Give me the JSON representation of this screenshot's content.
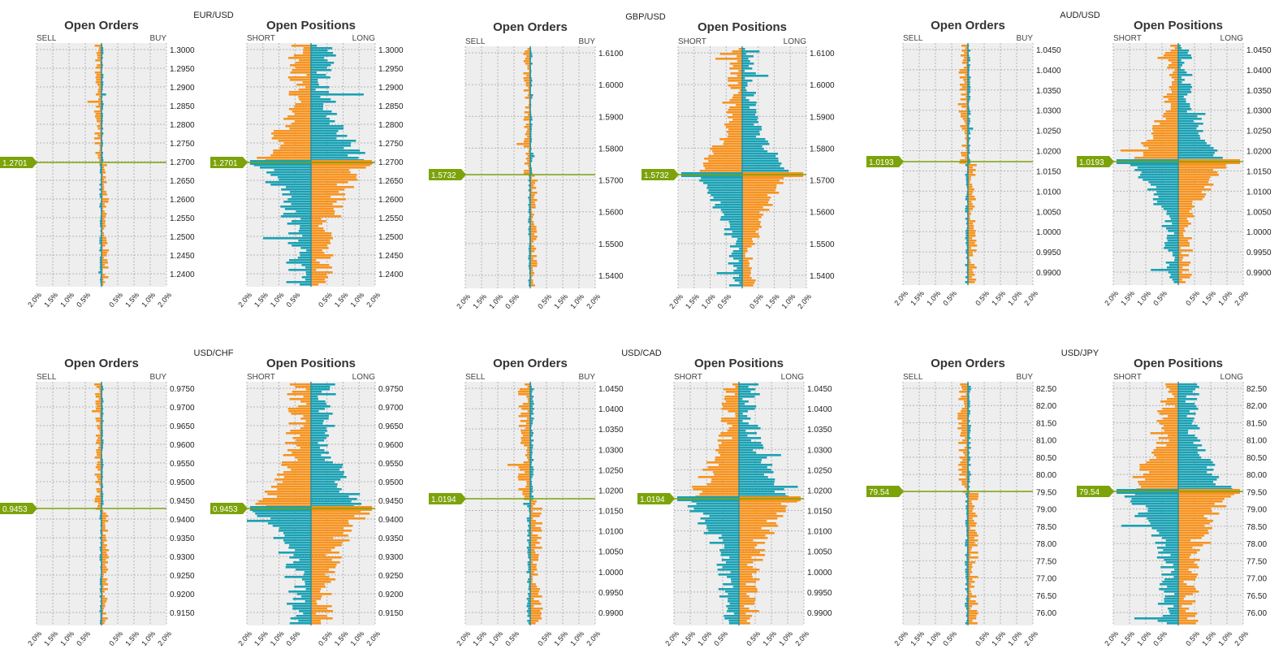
{
  "colors": {
    "buy": "#f7931e",
    "sell": "#1aa1b4",
    "price": "#7ca30a",
    "plot_bg": "#eeeeee",
    "grid": "#b4b4b4"
  },
  "chart_data": [
    {
      "pair": "EUR/USD",
      "title": "Open Orders",
      "type": "bar",
      "left_label": "SELL",
      "right_label": "BUY",
      "current_price": "1.2701",
      "y_ticks": [
        "1.3000",
        "1.2950",
        "1.2900",
        "1.2850",
        "1.2800",
        "1.2750",
        "1.2700",
        "1.2650",
        "1.2600",
        "1.2550",
        "1.2500",
        "1.2450",
        "1.2400"
      ],
      "x_ticks": [
        "2.0%",
        "1.5%",
        "1.0%",
        "0.5%",
        "0.5%",
        "1.5%",
        "1.0%",
        "2.0%"
      ],
      "xlim": [
        -2.0,
        2.0
      ],
      "above_bias": "buy",
      "seed": 11,
      "bar_scale": 0.35,
      "spike": 0.9
    },
    {
      "pair": "EUR/USD",
      "title": "Open Positions",
      "type": "bar",
      "left_label": "SHORT",
      "right_label": "LONG",
      "current_price": "1.2701",
      "y_ticks": [
        "1.3000",
        "1.2950",
        "1.2900",
        "1.2850",
        "1.2800",
        "1.2750",
        "1.2700",
        "1.2650",
        "1.2600",
        "1.2550",
        "1.2500",
        "1.2450",
        "1.2400"
      ],
      "x_ticks": [
        "2.0%",
        "1.5%",
        "1.0%",
        "0.5%",
        "0.5%",
        "1.5%",
        "1.0%",
        "2.0%"
      ],
      "xlim": [
        -2.0,
        2.0
      ],
      "above_bias": "short-long",
      "seed": 12,
      "bar_scale": 1.2,
      "spike": 2.0
    },
    {
      "pair": "GBP/USD",
      "title": "Open Orders",
      "type": "bar",
      "left_label": "SELL",
      "right_label": "BUY",
      "current_price": "1.5732",
      "y_ticks": [
        "1.6100",
        "1.6000",
        "1.5900",
        "1.5800",
        "1.5700",
        "1.5600",
        "1.5500",
        "1.5400"
      ],
      "x_ticks": [
        "2.0%",
        "1.5%",
        "1.0%",
        "0.5%",
        "0.5%",
        "1.5%",
        "1.0%",
        "2.0%"
      ],
      "xlim": [
        -2.0,
        2.0
      ],
      "above_bias": "buy",
      "seed": 21,
      "bar_scale": 0.35,
      "spike": 0.8
    },
    {
      "pair": "GBP/USD",
      "title": "Open Positions",
      "type": "bar",
      "left_label": "SHORT",
      "right_label": "LONG",
      "current_price": "1.5732",
      "y_ticks": [
        "1.6100",
        "1.6000",
        "1.5900",
        "1.5800",
        "1.5700",
        "1.5600",
        "1.5500",
        "1.5400"
      ],
      "x_ticks": [
        "2.0%",
        "1.5%",
        "1.0%",
        "0.5%",
        "0.5%",
        "1.5%",
        "1.0%",
        "2.0%"
      ],
      "xlim": [
        -2.0,
        2.0
      ],
      "above_bias": "short-long",
      "seed": 22,
      "bar_scale": 0.7,
      "spike": 2.0
    },
    {
      "pair": "AUD/USD",
      "title": "Open Orders",
      "type": "bar",
      "left_label": "SELL",
      "right_label": "BUY",
      "current_price": "1.0193",
      "y_ticks": [
        "1.0450",
        "1.0400",
        "1.0350",
        "1.0300",
        "1.0250",
        "1.0200",
        "1.0150",
        "1.0100",
        "1.0050",
        "1.0000",
        "0.9950",
        "0.9900"
      ],
      "x_ticks": [
        "2.0%",
        "1.5%",
        "1.0%",
        "0.5%",
        "0.5%",
        "1.5%",
        "1.0%",
        "2.0%"
      ],
      "xlim": [
        -2.0,
        2.0
      ],
      "above_bias": "buy",
      "seed": 31,
      "bar_scale": 0.45,
      "spike": 1.0
    },
    {
      "pair": "AUD/USD",
      "title": "Open Positions",
      "type": "bar",
      "left_label": "SHORT",
      "right_label": "LONG",
      "current_price": "1.0193",
      "y_ticks": [
        "1.0450",
        "1.0400",
        "1.0350",
        "1.0300",
        "1.0250",
        "1.0200",
        "1.0150",
        "1.0100",
        "1.0050",
        "1.0000",
        "0.9950",
        "0.9900"
      ],
      "x_ticks": [
        "2.0%",
        "1.5%",
        "1.0%",
        "0.5%",
        "0.5%",
        "1.5%",
        "1.0%",
        "2.0%"
      ],
      "xlim": [
        -2.0,
        2.0
      ],
      "above_bias": "short-long",
      "seed": 32,
      "bar_scale": 0.7,
      "spike": 2.0
    },
    {
      "pair": "USD/CHF",
      "title": "Open Orders",
      "type": "bar",
      "left_label": "SELL",
      "right_label": "BUY",
      "current_price": "0.9453",
      "y_ticks": [
        "0.9750",
        "0.9700",
        "0.9650",
        "0.9600",
        "0.9550",
        "0.9500",
        "0.9450",
        "0.9400",
        "0.9350",
        "0.9300",
        "0.9250",
        "0.9200",
        "0.9150"
      ],
      "x_ticks": [
        "2.0%",
        "1.5%",
        "1.0%",
        "0.5%",
        "0.5%",
        "1.5%",
        "1.0%",
        "2.0%"
      ],
      "xlim": [
        -2.0,
        2.0
      ],
      "above_bias": "buy",
      "seed": 41,
      "bar_scale": 0.35,
      "spike": 0.7
    },
    {
      "pair": "USD/CHF",
      "title": "Open Positions",
      "type": "bar",
      "left_label": "SHORT",
      "right_label": "LONG",
      "current_price": "0.9453",
      "y_ticks": [
        "0.9750",
        "0.9700",
        "0.9650",
        "0.9600",
        "0.9550",
        "0.9500",
        "0.9450",
        "0.9400",
        "0.9350",
        "0.9300",
        "0.9250",
        "0.9200",
        "0.9150"
      ],
      "x_ticks": [
        "2.0%",
        "1.5%",
        "1.0%",
        "0.5%",
        "0.5%",
        "1.5%",
        "1.0%",
        "2.0%"
      ],
      "xlim": [
        -2.0,
        2.0
      ],
      "above_bias": "long-short",
      "seed": 42,
      "bar_scale": 1.2,
      "spike": 2.0
    },
    {
      "pair": "USD/CAD",
      "title": "Open Orders",
      "type": "bar",
      "left_label": "SELL",
      "right_label": "BUY",
      "current_price": "1.0194",
      "y_ticks": [
        "1.0450",
        "1.0400",
        "1.0350",
        "1.0300",
        "1.0250",
        "1.0200",
        "1.0150",
        "1.0100",
        "1.0050",
        "1.0000",
        "0.9950",
        "0.9900"
      ],
      "x_ticks": [
        "2.0%",
        "1.5%",
        "1.0%",
        "0.5%",
        "0.5%",
        "1.5%",
        "1.0%",
        "2.0%"
      ],
      "xlim": [
        -2.0,
        2.0
      ],
      "above_bias": "buy",
      "seed": 51,
      "bar_scale": 0.6,
      "spike": 1.8
    },
    {
      "pair": "USD/CAD",
      "title": "Open Positions",
      "type": "bar",
      "left_label": "SHORT",
      "right_label": "LONG",
      "current_price": "1.0194",
      "y_ticks": [
        "1.0450",
        "1.0400",
        "1.0350",
        "1.0300",
        "1.0250",
        "1.0200",
        "1.0150",
        "1.0100",
        "1.0050",
        "1.0000",
        "0.9950",
        "0.9900"
      ],
      "x_ticks": [
        "2.0%",
        "1.5%",
        "1.0%",
        "0.5%",
        "0.5%",
        "1.5%",
        "1.0%",
        "2.0%"
      ],
      "xlim": [
        -2.0,
        2.0
      ],
      "above_bias": "long-short",
      "seed": 52,
      "bar_scale": 1.0,
      "spike": 2.0
    },
    {
      "pair": "USD/JPY",
      "title": "Open Orders",
      "type": "bar",
      "left_label": "SELL",
      "right_label": "BUY",
      "current_price": "79.54",
      "y_ticks": [
        "82.50",
        "82.00",
        "81.50",
        "81.00",
        "80.50",
        "80.00",
        "79.50",
        "79.00",
        "78.50",
        "78.00",
        "77.50",
        "77.00",
        "76.50",
        "76.00"
      ],
      "x_ticks": [
        "2.0%",
        "1.5%",
        "1.0%",
        "0.5%",
        "0.5%",
        "1.5%",
        "1.0%",
        "2.0%"
      ],
      "xlim": [
        -2.0,
        2.0
      ],
      "above_bias": "buy",
      "seed": 61,
      "bar_scale": 0.5,
      "spike": 1.0
    },
    {
      "pair": "USD/JPY",
      "title": "Open Positions",
      "type": "bar",
      "left_label": "SHORT",
      "right_label": "LONG",
      "current_price": "79.54",
      "y_ticks": [
        "82.50",
        "82.00",
        "81.50",
        "81.00",
        "80.50",
        "80.00",
        "79.50",
        "79.00",
        "78.50",
        "78.00",
        "77.50",
        "77.00",
        "76.50",
        "76.00"
      ],
      "x_ticks": [
        "2.0%",
        "1.5%",
        "1.0%",
        "0.5%",
        "0.5%",
        "1.5%",
        "1.0%",
        "2.0%"
      ],
      "xlim": [
        -2.0,
        2.0
      ],
      "above_bias": "short-long",
      "seed": 62,
      "bar_scale": 1.0,
      "spike": 2.0
    }
  ]
}
